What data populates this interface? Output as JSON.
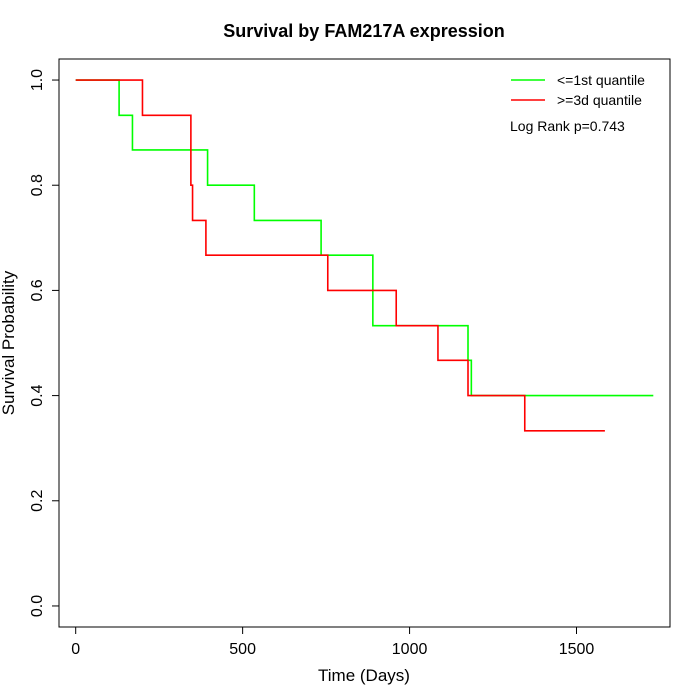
{
  "chart_data": {
    "type": "line",
    "title": "Survival by FAM217A expression",
    "xlabel": "Time (Days)",
    "ylabel": "Survival Probability",
    "xlim": [
      -50,
      1780
    ],
    "ylim": [
      -0.04,
      1.04
    ],
    "xticks": [
      0,
      500,
      1000,
      1500
    ],
    "yticks": [
      0.0,
      0.2,
      0.4,
      0.6,
      0.8,
      1.0
    ],
    "xtick_labels": [
      "0",
      "500",
      "1000",
      "1500"
    ],
    "ytick_labels": [
      "0.0",
      "0.2",
      "0.4",
      "0.6",
      "0.8",
      "1.0"
    ],
    "grid": false,
    "legend_position": "top-right",
    "annotation": "Log Rank p=0.743",
    "series": [
      {
        "name": "<=1st quantile",
        "color": "#00ff00",
        "step": true,
        "x": [
          0,
          130,
          170,
          395,
          535,
          735,
          890,
          1175,
          1185,
          1730
        ],
        "y": [
          1.0,
          0.933,
          0.867,
          0.8,
          0.733,
          0.667,
          0.533,
          0.467,
          0.4,
          0.4
        ]
      },
      {
        "name": ">=3d quantile",
        "color": "#ff0000",
        "step": true,
        "x": [
          0,
          200,
          345,
          350,
          390,
          755,
          960,
          1085,
          1175,
          1345,
          1585
        ],
        "y": [
          1.0,
          0.933,
          0.8,
          0.733,
          0.667,
          0.6,
          0.533,
          0.467,
          0.4,
          0.333,
          0.333
        ]
      }
    ]
  }
}
